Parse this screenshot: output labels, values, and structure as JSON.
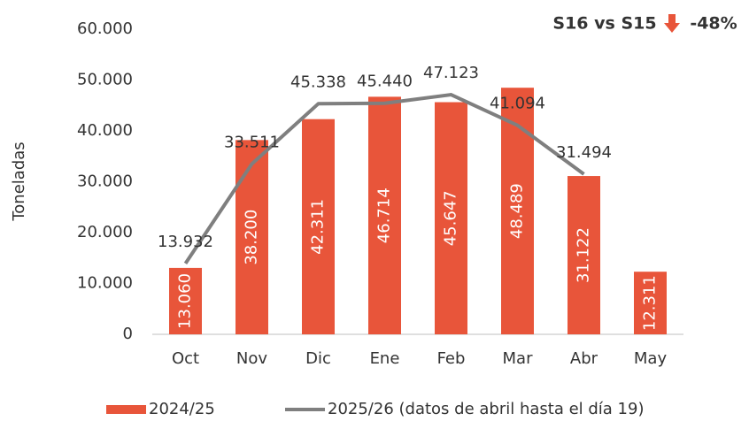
{
  "chart_data": {
    "type": "bar",
    "annotation": "S16 vs S15",
    "annotation_value": "-48%",
    "ylabel": "Toneladas",
    "categories": [
      "Oct",
      "Nov",
      "Dic",
      "Ene",
      "Feb",
      "Mar",
      "Abr",
      "May"
    ],
    "series": [
      {
        "name": "2024/25",
        "type": "bar",
        "color": "#e8553a",
        "values": [
          13060,
          38200,
          42311,
          46714,
          45647,
          48489,
          31122,
          12311
        ],
        "value_labels": [
          "13.060",
          "38.200",
          "42.311",
          "46.714",
          "45.647",
          "48.489",
          "31.122",
          "12.311"
        ]
      },
      {
        "name": "2025/26 (datos de abril hasta el día 19)",
        "type": "line",
        "color": "#7f7f7f",
        "values": [
          13932,
          33511,
          45338,
          45440,
          47123,
          41094,
          31494,
          null
        ],
        "value_labels": [
          "13.932",
          "33.511",
          "45.338",
          "45.440",
          "47.123",
          "41.094",
          "31.494",
          null
        ]
      }
    ],
    "ylim": [
      0,
      60000
    ],
    "yticks": [
      {
        "value": 0,
        "label": "0"
      },
      {
        "value": 10000,
        "label": "10.000"
      },
      {
        "value": 20000,
        "label": "20.000"
      },
      {
        "value": 30000,
        "label": "30.000"
      },
      {
        "value": 40000,
        "label": "40.000"
      },
      {
        "value": 50000,
        "label": "50.000"
      },
      {
        "value": 60000,
        "label": "60.000"
      }
    ],
    "legend": "bottom"
  }
}
